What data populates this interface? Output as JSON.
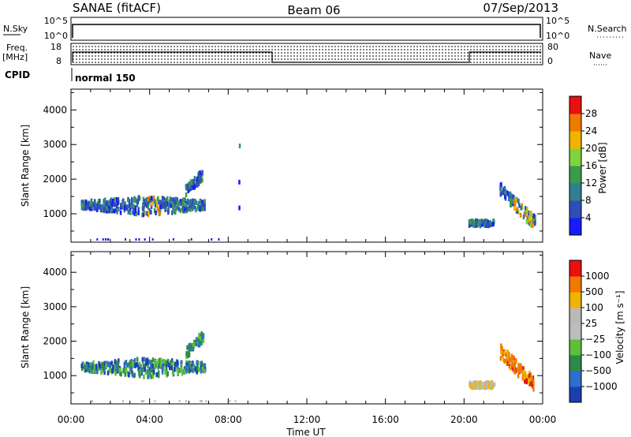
{
  "header": {
    "station": "SANAE (fitACF)",
    "beam": "Beam 06",
    "date": "07/Sep/2013"
  },
  "noise_panel": {
    "left_label": "N.Sky",
    "right_label": "N.Search",
    "left_ticks": [
      "10^5",
      "10^0"
    ],
    "right_ticks": [
      "10^5",
      "10^0"
    ]
  },
  "freq_panel": {
    "left_label_line1": "Freq.",
    "left_label_line2": "[MHz]",
    "right_label": "Nave",
    "left_ticks": [
      "18",
      "8"
    ],
    "right_ticks": [
      "80",
      "0"
    ]
  },
  "cpid": {
    "label": "CPID",
    "mode": "normal 150"
  },
  "chart_data": [
    {
      "type": "heatmap",
      "name": "power",
      "ylabel": "Slant Range [km]",
      "ylim": [
        180,
        4600
      ],
      "y_ticks": [
        "1000",
        "2000",
        "3000",
        "4000"
      ],
      "xlim": [
        0,
        24
      ],
      "colorbar": {
        "label": "Power [dB]",
        "tick_labels": [
          "4",
          "8",
          "12",
          "16",
          "20",
          "24",
          "28"
        ],
        "colors": [
          "#1a1aff",
          "#2f4fb4",
          "#2f7f8f",
          "#3a9a50",
          "#7fd43a",
          "#f0b400",
          "#f07a00",
          "#e81010"
        ]
      },
      "echo_regions": [
        {
          "t_start": 0.5,
          "t_end": 6.8,
          "r_min": 900,
          "r_max": 1500,
          "dominant": "blue-green",
          "peak": "yellow-orange near 04:00"
        },
        {
          "t_start": 5.8,
          "t_end": 6.7,
          "r_min": 1500,
          "r_max": 2300,
          "dominant": "blue"
        },
        {
          "t_start": 8.5,
          "t_end": 8.55,
          "r_min": 1000,
          "r_max": 3200,
          "dominant": "scattered"
        },
        {
          "t_start": 20.2,
          "t_end": 21.5,
          "r_min": 650,
          "r_max": 800,
          "dominant": "blue"
        },
        {
          "t_start": 21.8,
          "t_end": 23.6,
          "r_min": 750,
          "r_max": 1900,
          "dominant": "blue-green",
          "peak": "yellow near 23:00"
        }
      ]
    },
    {
      "type": "heatmap",
      "name": "velocity",
      "ylabel": "Slant Range [km]",
      "xlabel": "Time UT",
      "ylim": [
        180,
        4600
      ],
      "y_ticks": [
        "1000",
        "2000",
        "3000",
        "4000"
      ],
      "xlim": [
        0,
        24
      ],
      "x_ticks": [
        "00:00",
        "04:00",
        "08:00",
        "12:00",
        "16:00",
        "20:00",
        "00:00"
      ],
      "colorbar": {
        "label": "Velocity [m s⁻¹]",
        "tick_labels": [
          "1000",
          "500",
          "100",
          "25",
          "−25",
          "−100",
          "−500",
          "−1000"
        ],
        "colors": [
          "#1a3fb0",
          "#2e6ecc",
          "#2e8a4a",
          "#5cc03c",
          "#bdbdbd",
          "#b9b9b9",
          "#f0b400",
          "#f07a00",
          "#e81010"
        ]
      },
      "echo_regions": [
        {
          "t_start": 0.5,
          "t_end": 6.8,
          "r_min": 900,
          "r_max": 1500,
          "dominant": "blue-green"
        },
        {
          "t_start": 5.8,
          "t_end": 6.7,
          "r_min": 1500,
          "r_max": 2300,
          "dominant": "green"
        },
        {
          "t_start": 20.2,
          "t_end": 21.5,
          "r_min": 650,
          "r_max": 800,
          "dominant": "grey"
        },
        {
          "t_start": 21.8,
          "t_end": 23.6,
          "r_min": 750,
          "r_max": 1900,
          "dominant": "orange"
        }
      ]
    }
  ]
}
